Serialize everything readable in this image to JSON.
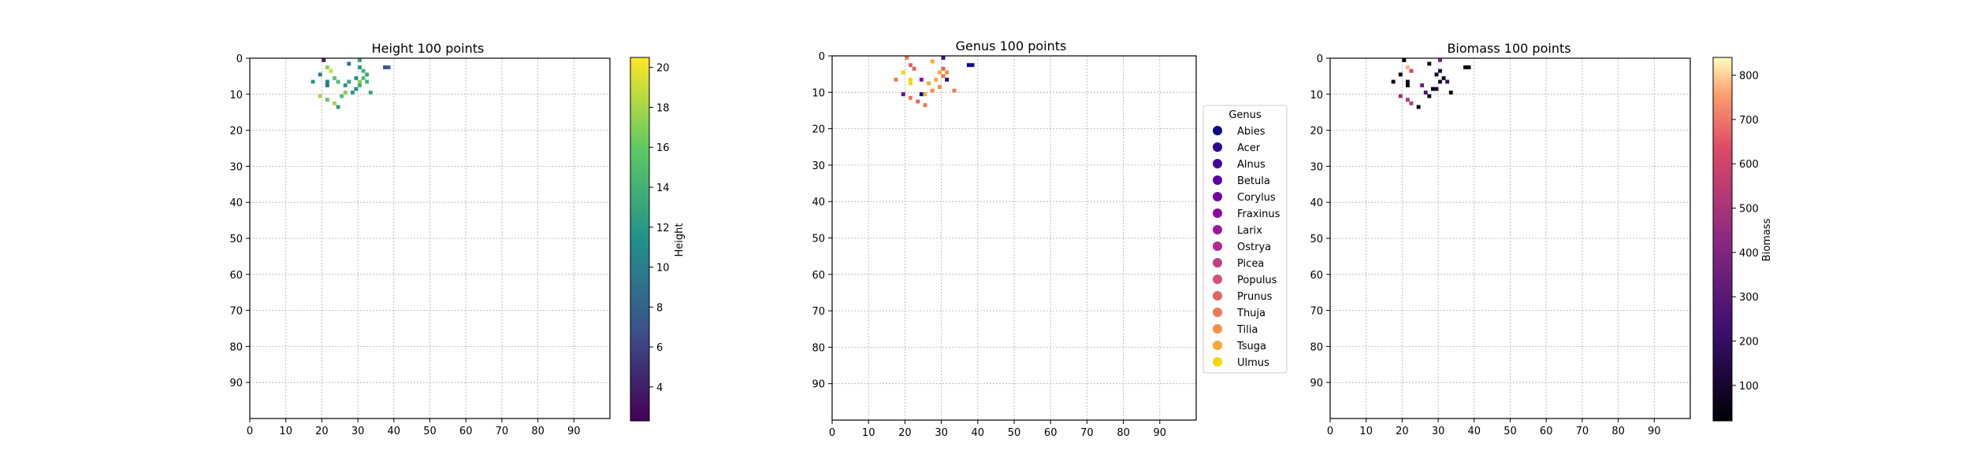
{
  "chart_data": [
    {
      "type": "heatmap",
      "title": "Height 100 points",
      "xlim": [
        0,
        100
      ],
      "ylim": [
        100,
        0
      ],
      "xticks": [
        "0",
        "10",
        "20",
        "30",
        "40",
        "50",
        "60",
        "70",
        "80",
        "90"
      ],
      "yticks": [
        "0",
        "10",
        "20",
        "30",
        "40",
        "50",
        "60",
        "70",
        "80",
        "90"
      ],
      "grid": true,
      "colorbar": {
        "label": "Height",
        "colormap": "viridis",
        "range": [
          2.3,
          20.5
        ],
        "ticks": [
          "4",
          "6",
          "8",
          "10",
          "12",
          "14",
          "16",
          "18",
          "20"
        ]
      },
      "cells": [
        {
          "x": 20,
          "y": 0,
          "v": 4
        },
        {
          "x": 30,
          "y": 0,
          "v": 13
        },
        {
          "x": 21,
          "y": 2,
          "v": 17
        },
        {
          "x": 22,
          "y": 3,
          "v": 19
        },
        {
          "x": 27,
          "y": 1,
          "v": 9
        },
        {
          "x": 30,
          "y": 2,
          "v": 12
        },
        {
          "x": 31,
          "y": 3,
          "v": 14
        },
        {
          "x": 37,
          "y": 2,
          "v": 7
        },
        {
          "x": 38,
          "y": 2,
          "v": 8
        },
        {
          "x": 19,
          "y": 4,
          "v": 10
        },
        {
          "x": 23,
          "y": 5,
          "v": 16
        },
        {
          "x": 29,
          "y": 5,
          "v": 11
        },
        {
          "x": 32,
          "y": 4,
          "v": 13
        },
        {
          "x": 31,
          "y": 5,
          "v": 15
        },
        {
          "x": 17,
          "y": 6,
          "v": 12
        },
        {
          "x": 21,
          "y": 6,
          "v": 10
        },
        {
          "x": 24,
          "y": 6,
          "v": 15
        },
        {
          "x": 27,
          "y": 6,
          "v": 13
        },
        {
          "x": 30,
          "y": 6,
          "v": 17
        },
        {
          "x": 32,
          "y": 6,
          "v": 14
        },
        {
          "x": 21,
          "y": 7,
          "v": 9
        },
        {
          "x": 26,
          "y": 7,
          "v": 12
        },
        {
          "x": 30,
          "y": 7,
          "v": 14
        },
        {
          "x": 29,
          "y": 8,
          "v": 11
        },
        {
          "x": 33,
          "y": 9,
          "v": 13
        },
        {
          "x": 26,
          "y": 9,
          "v": 17
        },
        {
          "x": 28,
          "y": 9,
          "v": 12
        },
        {
          "x": 19,
          "y": 10,
          "v": 18
        },
        {
          "x": 25,
          "y": 10,
          "v": 15
        },
        {
          "x": 21,
          "y": 11,
          "v": 16
        },
        {
          "x": 23,
          "y": 12,
          "v": 18
        },
        {
          "x": 24,
          "y": 13,
          "v": 12
        }
      ]
    },
    {
      "type": "heatmap",
      "title": "Genus 100 points",
      "xlim": [
        0,
        100
      ],
      "ylim": [
        100,
        0
      ],
      "xticks": [
        "0",
        "10",
        "20",
        "30",
        "40",
        "50",
        "60",
        "70",
        "80",
        "90"
      ],
      "yticks": [
        "0",
        "10",
        "20",
        "30",
        "40",
        "50",
        "60",
        "70",
        "80",
        "90"
      ],
      "grid": true,
      "legend": {
        "title": "Genus",
        "placement": "right",
        "entries": [
          {
            "label": "Abies",
            "color": "#0d0887"
          },
          {
            "label": "Acer",
            "color": "#2c0594"
          },
          {
            "label": "Alnus",
            "color": "#43039e"
          },
          {
            "label": "Betula",
            "color": "#5c01a6"
          },
          {
            "label": "Corylus",
            "color": "#7201a8"
          },
          {
            "label": "Fraxinus",
            "color": "#8a09a5"
          },
          {
            "label": "Larix",
            "color": "#9c179e"
          },
          {
            "label": "Ostrya",
            "color": "#b12a90"
          },
          {
            "label": "Picea",
            "color": "#c33d80"
          },
          {
            "label": "Populus",
            "color": "#d35171"
          },
          {
            "label": "Prunus",
            "color": "#e16462"
          },
          {
            "label": "Thuja",
            "color": "#ed7953"
          },
          {
            "label": "Tilia",
            "color": "#f68f44"
          },
          {
            "label": "Tsuga",
            "color": "#fca636"
          },
          {
            "label": "Ulmus",
            "color": "#f0d80a"
          }
        ]
      },
      "cells": [
        {
          "x": 20,
          "y": 0,
          "g": "Thuja"
        },
        {
          "x": 30,
          "y": 0,
          "g": "Alnus"
        },
        {
          "x": 27,
          "y": 1,
          "g": "Tsuga"
        },
        {
          "x": 37,
          "y": 2,
          "g": "Abies"
        },
        {
          "x": 38,
          "y": 2,
          "g": "Abies"
        },
        {
          "x": 21,
          "y": 2,
          "g": "Prunus"
        },
        {
          "x": 22,
          "y": 3,
          "g": "Prunus"
        },
        {
          "x": 30,
          "y": 3,
          "g": "Prunus"
        },
        {
          "x": 19,
          "y": 4,
          "g": "Ulmus"
        },
        {
          "x": 29,
          "y": 4,
          "g": "Tsuga"
        },
        {
          "x": 31,
          "y": 4,
          "g": "Tilia"
        },
        {
          "x": 17,
          "y": 6,
          "g": "Thuja"
        },
        {
          "x": 21,
          "y": 6,
          "g": "Ulmus"
        },
        {
          "x": 24,
          "y": 6,
          "g": "Fraxinus"
        },
        {
          "x": 28,
          "y": 6,
          "g": "Tsuga"
        },
        {
          "x": 31,
          "y": 6,
          "g": "Acer"
        },
        {
          "x": 30,
          "y": 5,
          "g": "Thuja"
        },
        {
          "x": 21,
          "y": 7,
          "g": "Ulmus"
        },
        {
          "x": 26,
          "y": 7,
          "g": "Tsuga"
        },
        {
          "x": 29,
          "y": 8,
          "g": "Tilia"
        },
        {
          "x": 33,
          "y": 9,
          "g": "Thuja"
        },
        {
          "x": 27,
          "y": 9,
          "g": "Tilia"
        },
        {
          "x": 19,
          "y": 10,
          "g": "Corylus"
        },
        {
          "x": 24,
          "y": 10,
          "g": "Abies"
        },
        {
          "x": 25,
          "y": 10,
          "g": "Tsuga"
        },
        {
          "x": 21,
          "y": 11,
          "g": "Thuja"
        },
        {
          "x": 23,
          "y": 12,
          "g": "Prunus"
        },
        {
          "x": 25,
          "y": 13,
          "g": "Thuja"
        }
      ]
    },
    {
      "type": "heatmap",
      "title": "Biomass 100 points",
      "xlim": [
        0,
        100
      ],
      "ylim": [
        100,
        0
      ],
      "xticks": [
        "0",
        "10",
        "20",
        "30",
        "40",
        "50",
        "60",
        "70",
        "80",
        "90"
      ],
      "yticks": [
        "0",
        "10",
        "20",
        "30",
        "40",
        "50",
        "60",
        "70",
        "80",
        "90"
      ],
      "grid": true,
      "colorbar": {
        "label": "Biomass",
        "colormap": "magma",
        "range": [
          20,
          840
        ],
        "ticks": [
          "100",
          "200",
          "300",
          "400",
          "500",
          "600",
          "700",
          "800"
        ]
      },
      "cells": [
        {
          "x": 20,
          "y": 0,
          "v": 40
        },
        {
          "x": 30,
          "y": 0,
          "v": 380
        },
        {
          "x": 27,
          "y": 1,
          "v": 60
        },
        {
          "x": 37,
          "y": 2,
          "v": 50
        },
        {
          "x": 38,
          "y": 2,
          "v": 40
        },
        {
          "x": 21,
          "y": 2,
          "v": 780
        },
        {
          "x": 22,
          "y": 3,
          "v": 600
        },
        {
          "x": 19,
          "y": 4,
          "v": 30
        },
        {
          "x": 30,
          "y": 3,
          "v": 120
        },
        {
          "x": 29,
          "y": 4,
          "v": 80
        },
        {
          "x": 31,
          "y": 5,
          "v": 60
        },
        {
          "x": 17,
          "y": 6,
          "v": 40
        },
        {
          "x": 21,
          "y": 6,
          "v": 60
        },
        {
          "x": 32,
          "y": 6,
          "v": 200
        },
        {
          "x": 30,
          "y": 6,
          "v": 90
        },
        {
          "x": 21,
          "y": 7,
          "v": 30
        },
        {
          "x": 25,
          "y": 7,
          "v": 320
        },
        {
          "x": 28,
          "y": 8,
          "v": 40
        },
        {
          "x": 29,
          "y": 8,
          "v": 120
        },
        {
          "x": 33,
          "y": 9,
          "v": 40
        },
        {
          "x": 26,
          "y": 9,
          "v": 250
        },
        {
          "x": 27,
          "y": 10,
          "v": 60
        },
        {
          "x": 19,
          "y": 10,
          "v": 480
        },
        {
          "x": 21,
          "y": 11,
          "v": 520
        },
        {
          "x": 22,
          "y": 12,
          "v": 560
        },
        {
          "x": 24,
          "y": 13,
          "v": 30
        }
      ]
    }
  ]
}
